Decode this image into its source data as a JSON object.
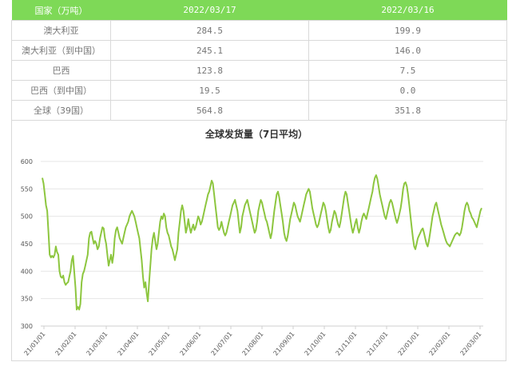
{
  "table": {
    "headers": [
      "国家（万吨）",
      "2022/03/17",
      "2022/03/16"
    ],
    "rows": [
      {
        "country": "澳大利亚",
        "v1": "284.5",
        "v2": "199.9"
      },
      {
        "country": "澳大利亚（到中国）",
        "v1": "245.1",
        "v2": "146.0"
      },
      {
        "country": "巴西",
        "v1": "123.8",
        "v2": "7.5"
      },
      {
        "country": "巴西（到中国）",
        "v1": "19.5",
        "v2": "0.0"
      },
      {
        "country": "全球（39国）",
        "v1": "564.8",
        "v2": "351.8"
      }
    ]
  },
  "colors": {
    "header_bg": "#7ed957",
    "line": "#8dc63f",
    "grid": "#e6e6e6"
  },
  "chart_data": {
    "type": "line",
    "title": "全球发货量（7日平均）",
    "xlabel": "",
    "ylabel": "",
    "ylim": [
      300,
      600
    ],
    "yticks": [
      300,
      350,
      400,
      450,
      500,
      550,
      600
    ],
    "xticks": [
      "21/01/01",
      "21/02/01",
      "21/03/01",
      "21/04/01",
      "21/05/01",
      "21/06/01",
      "21/07/01",
      "21/08/01",
      "21/09/01",
      "21/10/01",
      "21/11/01",
      "21/12/01",
      "22/01/01",
      "22/02/01",
      "22/03/01"
    ],
    "x_range": [
      "2021-01-01",
      "2022-03-17"
    ],
    "grid": true,
    "series": [
      {
        "values": [
          570,
          560,
          540,
          520,
          510,
          470,
          430,
          425,
          428,
          425,
          430,
          445,
          435,
          430,
          400,
          390,
          388,
          392,
          380,
          375,
          378,
          380,
          390,
          400,
          420,
          428,
          400,
          370,
          330,
          335,
          330,
          340,
          380,
          395,
          400,
          410,
          420,
          430,
          460,
          470,
          472,
          460,
          450,
          455,
          450,
          440,
          445,
          460,
          470,
          480,
          478,
          460,
          450,
          430,
          410,
          420,
          430,
          415,
          430,
          460,
          475,
          480,
          470,
          460,
          455,
          450,
          460,
          470,
          480,
          485,
          490,
          500,
          505,
          510,
          505,
          500,
          490,
          480,
          470,
          460,
          440,
          420,
          390,
          370,
          380,
          360,
          345,
          380,
          410,
          440,
          460,
          470,
          455,
          440,
          450,
          470,
          490,
          500,
          495,
          505,
          500,
          480,
          470,
          465,
          455,
          445,
          440,
          430,
          420,
          430,
          440,
          470,
          490,
          510,
          520,
          510,
          490,
          470,
          480,
          495,
          480,
          470,
          478,
          485,
          475,
          480,
          490,
          500,
          495,
          485,
          490,
          500,
          510,
          520,
          530,
          540,
          545,
          555,
          565,
          560,
          540,
          520,
          500,
          480,
          475,
          480,
          490,
          480,
          470,
          465,
          470,
          480,
          490,
          500,
          510,
          520,
          525,
          530,
          520,
          510,
          490,
          470,
          480,
          500,
          510,
          520,
          525,
          530,
          520,
          510,
          500,
          490,
          480,
          470,
          475,
          490,
          510,
          520,
          530,
          525,
          515,
          505,
          495,
          490,
          480,
          470,
          460,
          470,
          490,
          510,
          525,
          540,
          545,
          535,
          520,
          505,
          490,
          470,
          460,
          455,
          465,
          480,
          495,
          505,
          515,
          525,
          520,
          510,
          500,
          495,
          490,
          500,
          510,
          520,
          530,
          540,
          545,
          550,
          545,
          530,
          515,
          505,
          495,
          485,
          480,
          485,
          495,
          505,
          515,
          525,
          520,
          510,
          495,
          480,
          470,
          475,
          490,
          500,
          510,
          505,
          495,
          485,
          480,
          490,
          505,
          520,
          535,
          545,
          540,
          525,
          510,
          495,
          480,
          470,
          478,
          488,
          495,
          480,
          470,
          478,
          490,
          500,
          505,
          500,
          495,
          505,
          515,
          525,
          535,
          545,
          560,
          570,
          575,
          568,
          555,
          540,
          530,
          520,
          510,
          500,
          495,
          505,
          515,
          525,
          530,
          525,
          515,
          505,
          495,
          488,
          495,
          505,
          515,
          530,
          550,
          560,
          562,
          555,
          540,
          520,
          500,
          480,
          460,
          445,
          440,
          450,
          460,
          465,
          470,
          475,
          478,
          470,
          460,
          450,
          445,
          455,
          470,
          485,
          500,
          510,
          520,
          525,
          515,
          505,
          495,
          485,
          478,
          470,
          462,
          455,
          450,
          448,
          445,
          450,
          455,
          460,
          465,
          468,
          470,
          468,
          465,
          470,
          480,
          495,
          510,
          520,
          525,
          520,
          510,
          505,
          498,
          495,
          490,
          485,
          480,
          490,
          500,
          510,
          515
        ]
      }
    ]
  }
}
